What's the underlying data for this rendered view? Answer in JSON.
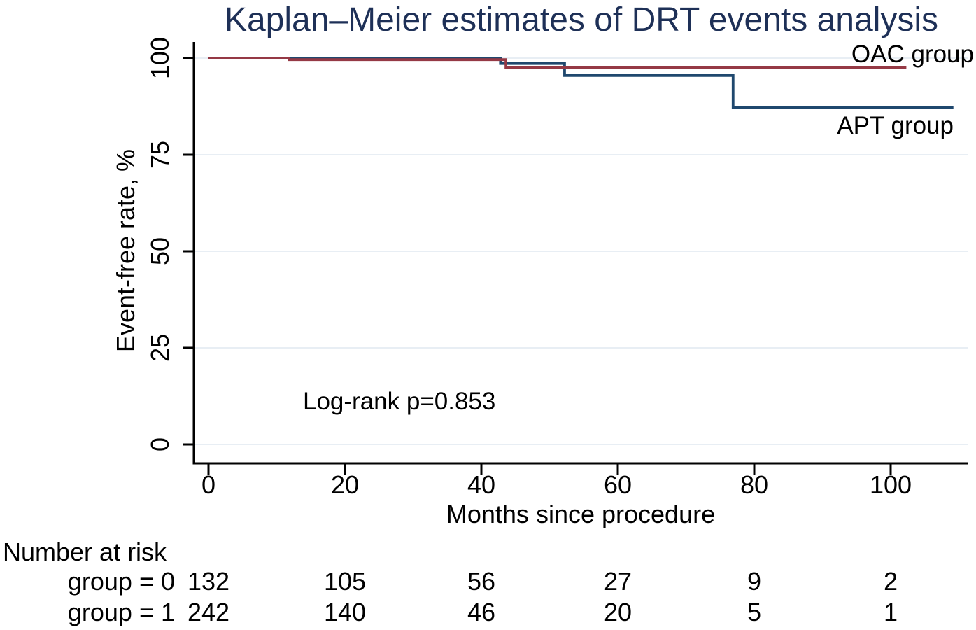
{
  "title": "Kaplan–Meier estimates of DRT events analysis",
  "axes": {
    "x_label": "Months since procedure",
    "y_label": "Event-free rate, %",
    "x_ticks": [
      "0",
      "20",
      "40",
      "60",
      "80",
      "100"
    ],
    "y_ticks": [
      "100",
      "75",
      "50",
      "25",
      "0"
    ]
  },
  "annotation": "Log-rank p=0.853",
  "series_labels": {
    "oac": "OAC group",
    "apt": "APT group"
  },
  "risk_table": {
    "header": "Number at risk",
    "rows": [
      {
        "label": "group = 0",
        "values": [
          "132",
          "105",
          "56",
          "27",
          "9",
          "2"
        ]
      },
      {
        "label": "group = 1",
        "values": [
          "242",
          "140",
          "46",
          "20",
          "5",
          "1"
        ]
      }
    ]
  },
  "colors": {
    "oac_line": "#953945",
    "apt_line": "#1f486e",
    "title": "#1e3057",
    "grid": "#e8eef4",
    "axis": "#000000"
  },
  "chart_data": {
    "type": "line",
    "subtype": "kaplan-meier-step",
    "title": "Kaplan–Meier estimates of DRT events analysis",
    "xlabel": "Months since procedure",
    "ylabel": "Event-free rate, %",
    "xlim": [
      0,
      111.5
    ],
    "ylim": [
      0,
      100
    ],
    "x_ticks": [
      0,
      20,
      40,
      60,
      80,
      100
    ],
    "y_ticks": [
      0,
      25,
      50,
      75,
      100
    ],
    "grid": "horizontal-light",
    "legend_position": "right-inline-labels",
    "annotations": [
      "Log-rank p=0.853"
    ],
    "series": [
      {
        "name": "OAC group",
        "color": "#953945",
        "points": [
          [
            0,
            100
          ],
          [
            11.8,
            100
          ],
          [
            11.8,
            99.6
          ],
          [
            43.6,
            99.6
          ],
          [
            43.6,
            97.6
          ],
          [
            102.3,
            97.6
          ]
        ]
      },
      {
        "name": "APT group",
        "color": "#1f486e",
        "points": [
          [
            0,
            100
          ],
          [
            42.8,
            100
          ],
          [
            42.8,
            98.6
          ],
          [
            52.2,
            98.6
          ],
          [
            52.2,
            95.5
          ],
          [
            76.9,
            95.5
          ],
          [
            76.9,
            87.3
          ],
          [
            109.2,
            87.3
          ]
        ]
      }
    ],
    "number_at_risk": {
      "times": [
        0,
        20,
        40,
        60,
        80,
        100
      ],
      "group = 0": [
        132,
        105,
        56,
        27,
        9,
        2
      ],
      "group = 1": [
        242,
        140,
        46,
        20,
        5,
        1
      ]
    }
  }
}
